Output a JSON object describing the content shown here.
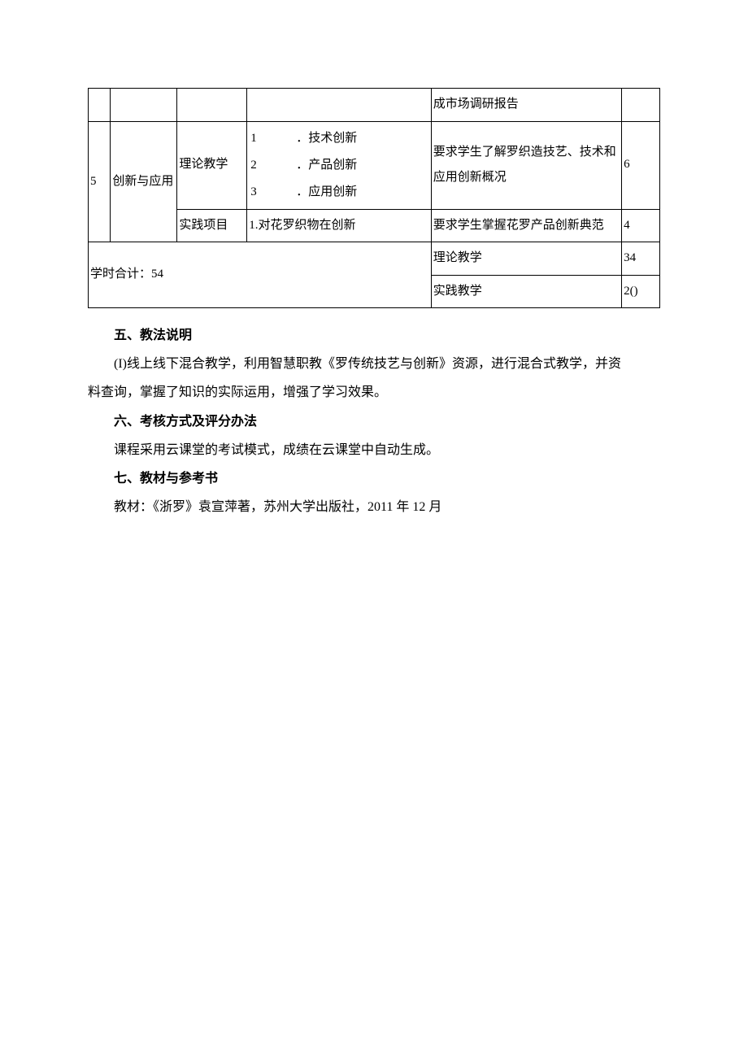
{
  "table": {
    "row0": {
      "c5": "成市场调研报告"
    },
    "row1": {
      "c1": "5",
      "c2": "创新与应用",
      "c3": "理论教学",
      "c4_items": [
        {
          "n": "1",
          "t": "．技术创新"
        },
        {
          "n": "2",
          "t": "．产品创新"
        },
        {
          "n": "3",
          "t": "．应用创新"
        }
      ],
      "c4_1": "1",
      "c4_1t": "．技术创新",
      "c4_2": "2",
      "c4_2t": "．产品创新",
      "c4_3": "3",
      "c4_3t": "．应用创新",
      "c5": "要求学生了解罗织造技艺、技术和应用创新概况",
      "c6": "6"
    },
    "row2": {
      "c3": "实践项目",
      "c4": "1.对花罗织物在创新",
      "c5": "要求学生掌握花罗产品创新典范",
      "c6": "4"
    },
    "total": {
      "label": "学时合计：54",
      "theory_label": "理论教学",
      "theory_hours": "34",
      "practice_label": "实践教学",
      "practice_hours": "2()"
    }
  },
  "sections": {
    "s5_title": "五、教法说明",
    "s5_p1a": "(I)线上线下混合教学，利用智慧职教《罗传统技艺与创新》资源，进行混合式教学，并资",
    "s5_p1b": "料查询，掌握了知识的实际运用，增强了学习效果。",
    "s6_title": "六、考核方式及评分办法",
    "s6_p1": "课程采用云课堂的考试模式，成绩在云课堂中自动生成。",
    "s7_title": "七、教材与参考书",
    "s7_p1": "教材：《浙罗》袁宣萍著，苏州大学出版社，2011 年 12 月"
  }
}
